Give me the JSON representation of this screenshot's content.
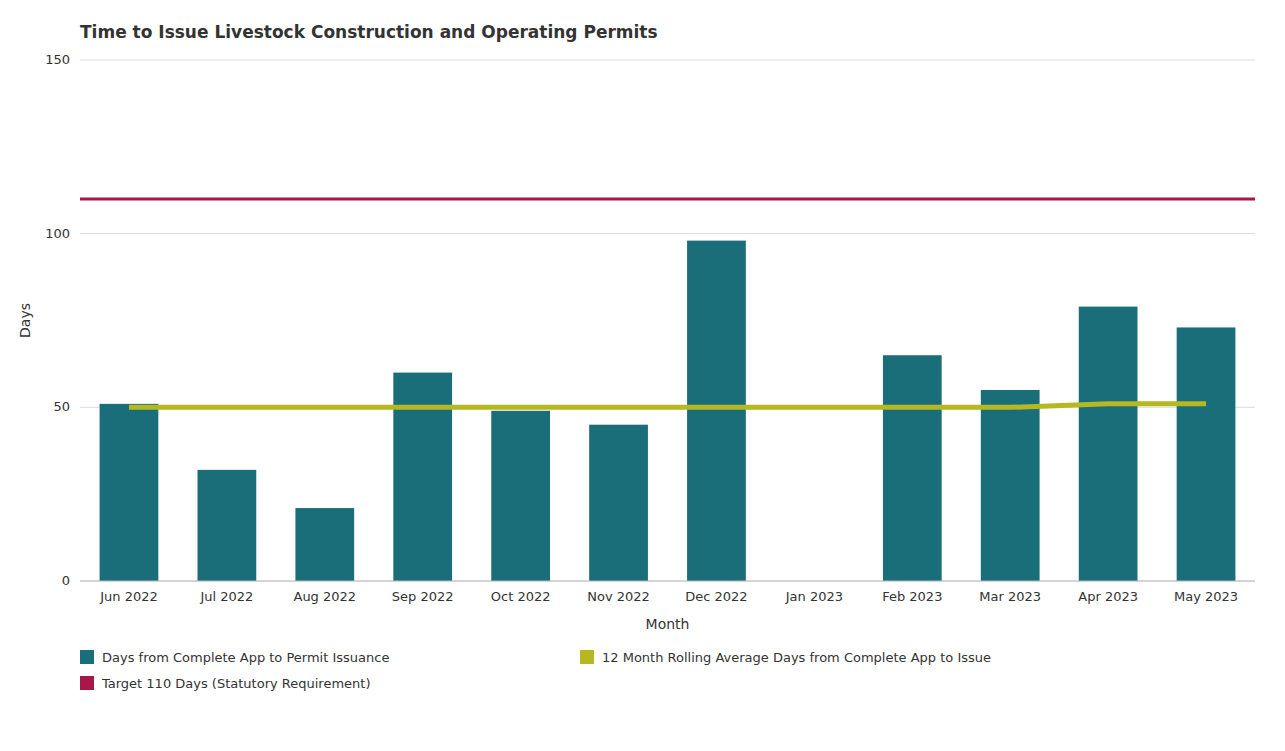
{
  "chart_data": {
    "type": "bar",
    "title": "Time to Issue Livestock Construction and Operating Permits",
    "xlabel": "Month",
    "ylabel": "Days",
    "categories": [
      "Jun 2022",
      "Jul 2022",
      "Aug 2022",
      "Sep 2022",
      "Oct 2022",
      "Nov 2022",
      "Dec 2022",
      "Jan 2023",
      "Feb 2023",
      "Mar 2023",
      "Apr 2023",
      "May 2023"
    ],
    "series": [
      {
        "name": "Days from Complete App to Permit Issuance",
        "type": "bar",
        "color": "#1a6e7a",
        "values": [
          51,
          32,
          21,
          60,
          49,
          45,
          98,
          0,
          65,
          55,
          79,
          73
        ]
      },
      {
        "name": "12 Month Rolling Average Days from Complete App to Issue",
        "type": "line",
        "color": "#b5b820",
        "values": [
          50,
          50,
          50,
          50,
          50,
          50,
          50,
          50,
          50,
          50,
          51,
          51
        ]
      }
    ],
    "reference_lines": [
      {
        "name": "Target 110 Days (Statutory Requirement)",
        "value": 110,
        "color": "#a8174a"
      }
    ],
    "ylim": [
      0,
      150
    ],
    "yticks": [
      0,
      50,
      100,
      150
    ],
    "grid": true,
    "legend": "bottom"
  }
}
